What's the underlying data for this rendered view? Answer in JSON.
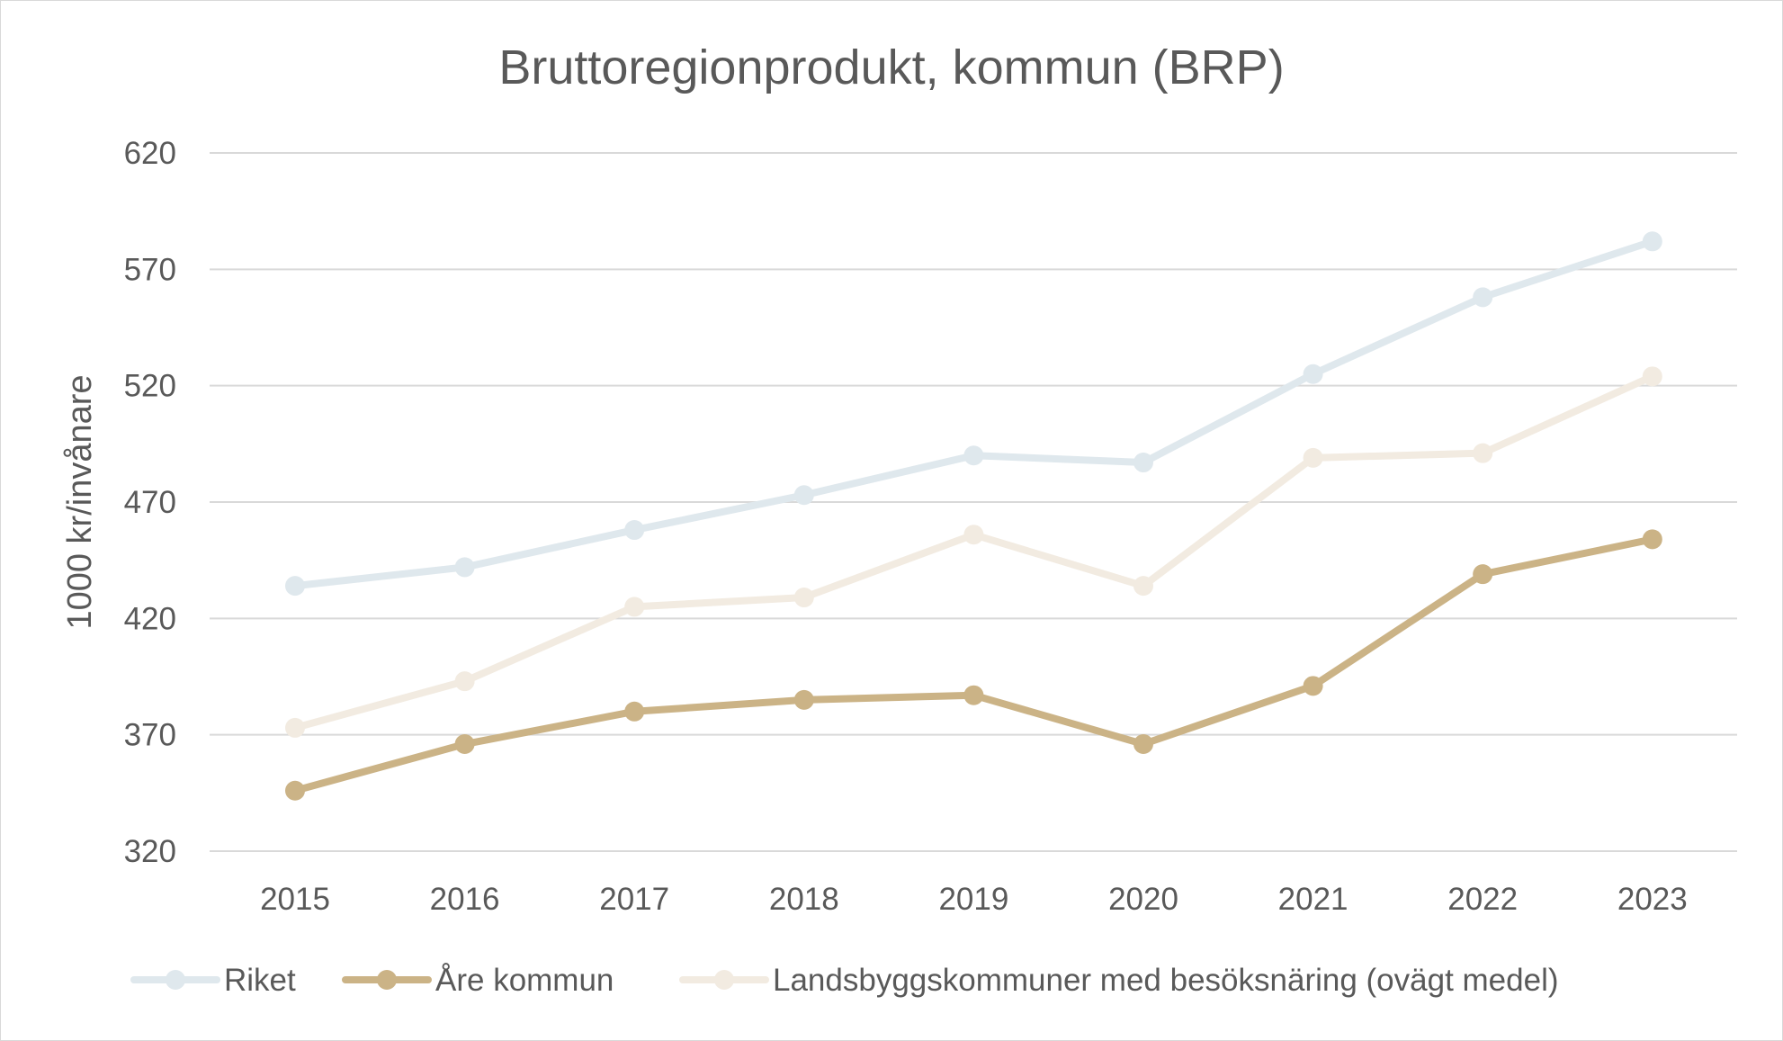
{
  "chart_data": {
    "type": "line",
    "title": "Bruttoregionprodukt, kommun (BRP)",
    "xlabel": "",
    "ylabel": "1000 kr/invånare",
    "ylim": [
      320,
      620
    ],
    "yticks": [
      320,
      370,
      420,
      470,
      520,
      570,
      620
    ],
    "categories": [
      "2015",
      "2016",
      "2017",
      "2018",
      "2019",
      "2020",
      "2021",
      "2022",
      "2023"
    ],
    "grid": true,
    "legend_position": "bottom",
    "series": [
      {
        "name": "Riket",
        "color": "#dfe8ed",
        "values": [
          434,
          442,
          458,
          473,
          490,
          487,
          525,
          558,
          582
        ]
      },
      {
        "name": "Åre kommun",
        "color": "#cbb386",
        "values": [
          346,
          366,
          380,
          385,
          387,
          366,
          391,
          439,
          454
        ]
      },
      {
        "name": "Landsbyggskommuner med besöksnäring (ovägt medel)",
        "color": "#f2ebe1",
        "values": [
          373,
          393,
          425,
          429,
          456,
          434,
          489,
          491,
          524
        ]
      }
    ]
  }
}
